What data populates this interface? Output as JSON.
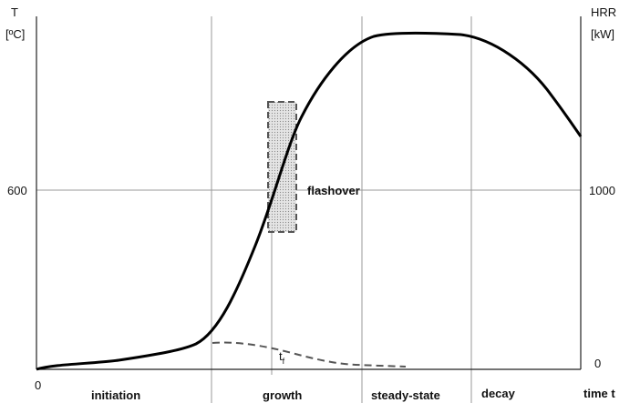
{
  "left_axis": {
    "label": "T",
    "unit": "[ºC]",
    "tick": "600"
  },
  "right_axis": {
    "label": "HRR",
    "unit": "[kW]",
    "tick": "1000",
    "zero": "0"
  },
  "x_axis": {
    "origin": "0",
    "label": "time t"
  },
  "phases": [
    "initiation",
    "growth",
    "steady-state",
    "decay"
  ],
  "annotations": {
    "flashover": "flashover",
    "tf_main": "t",
    "tf_sub": "f"
  }
}
